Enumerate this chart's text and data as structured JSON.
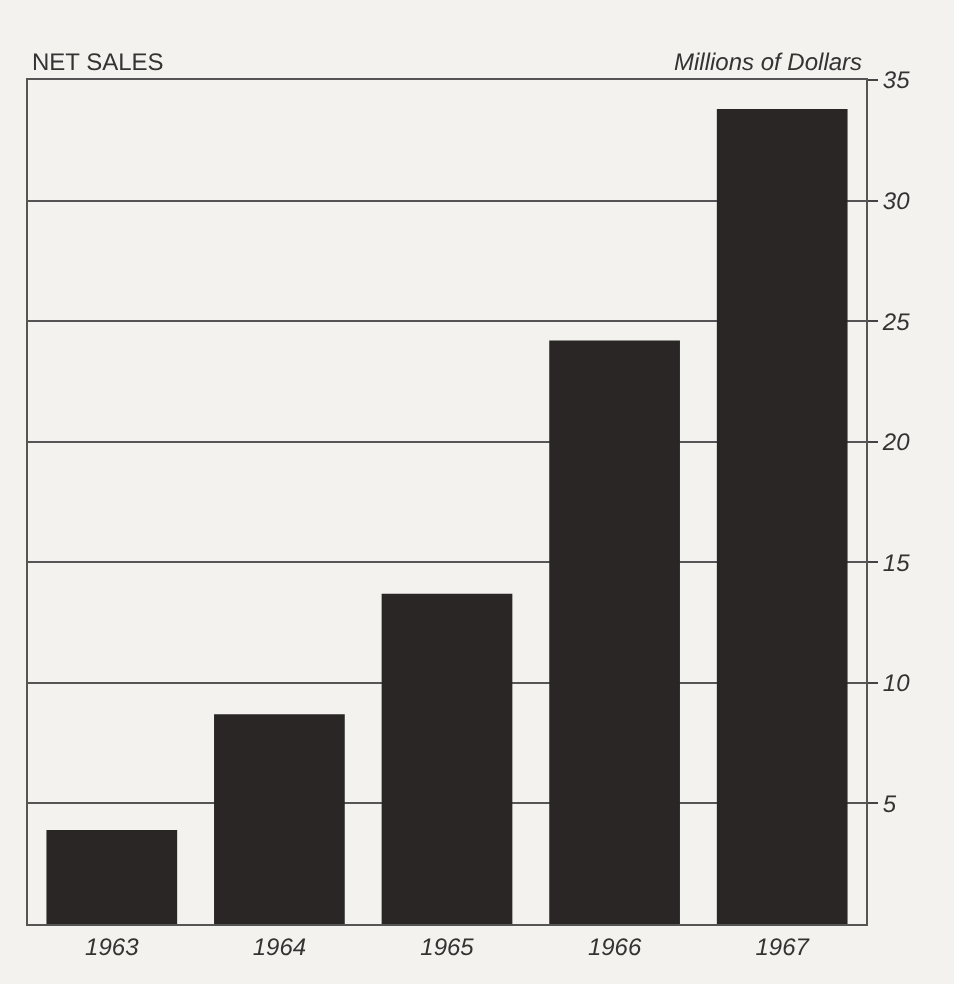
{
  "chart_data": {
    "type": "bar",
    "title": "NET SALES",
    "ylabel": "Millions of Dollars",
    "categories": [
      "1963",
      "1964",
      "1965",
      "1966",
      "1967"
    ],
    "values": [
      3.9,
      8.7,
      13.7,
      24.2,
      33.8
    ],
    "color": "#2a2626",
    "ylim": [
      0,
      35
    ],
    "yticks": [
      5,
      10,
      15,
      20,
      25,
      30,
      35
    ],
    "grid": "y"
  }
}
